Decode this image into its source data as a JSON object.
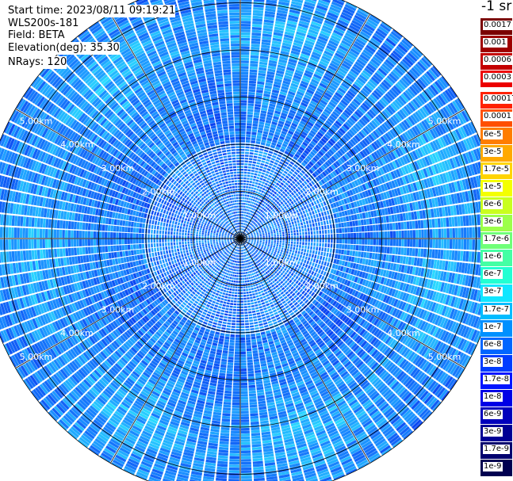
{
  "info": {
    "start_time": "Start time: 2023/08/11 09:19:21",
    "instrument": "WLS200s-181",
    "field": "Field: BETA",
    "elevation": "Elevation(deg): 35.30",
    "nrays": "NRays: 120"
  },
  "colorbar": {
    "unit_title": "-1 sr",
    "top_levels": [
      {
        "label": "0.0017",
        "color": "#7a0000"
      },
      {
        "label": "0.001",
        "color": "#9e0000"
      },
      {
        "label": "0.0006",
        "color": "#c40000"
      },
      {
        "label": "0.0003",
        "color": "#ec0000"
      }
    ],
    "main_levels": [
      {
        "label": "0.00017",
        "color": "#ff2200"
      },
      {
        "label": "0.0001",
        "color": "#ff4f00"
      },
      {
        "label": "6e-5",
        "color": "#ff7d00"
      },
      {
        "label": "3e-5",
        "color": "#ffa900"
      },
      {
        "label": "1.7e-5",
        "color": "#ffd400"
      },
      {
        "label": "1e-5",
        "color": "#f4ff00"
      },
      {
        "label": "6e-6",
        "color": "#c9ff1e"
      },
      {
        "label": "3e-6",
        "color": "#9cff4a"
      },
      {
        "label": "1.7e-6",
        "color": "#6eff78"
      },
      {
        "label": "1e-6",
        "color": "#44ffa4"
      },
      {
        "label": "6e-7",
        "color": "#22ffd2"
      },
      {
        "label": "3e-7",
        "color": "#10e6ff"
      },
      {
        "label": "1.7e-7",
        "color": "#00bcff"
      },
      {
        "label": "1e-7",
        "color": "#0090ff"
      },
      {
        "label": "6e-8",
        "color": "#0066ff"
      },
      {
        "label": "3e-8",
        "color": "#003cff"
      },
      {
        "label": "1.7e-8",
        "color": "#0014ff"
      },
      {
        "label": "1e-8",
        "color": "#0000e6"
      },
      {
        "label": "6e-9",
        "color": "#0000bc"
      },
      {
        "label": "3e-9",
        "color": "#000094"
      },
      {
        "label": "1.7e-9",
        "color": "#00006e"
      },
      {
        "label": "1e-9",
        "color": "#000050"
      }
    ]
  },
  "chart_data": {
    "type": "heatmap",
    "projection": "polar (PPI scan)",
    "field": "BETA",
    "elevation_deg": 35.3,
    "n_rays": 120,
    "range_km_max": 5.5,
    "range_rings_km": [
      1.0,
      2.0,
      3.0,
      4.0,
      5.0
    ],
    "range_ring_labels": [
      "1.00km",
      "2.00km",
      "3.00km",
      "4.00km",
      "5.00km"
    ],
    "dominant_value_range": [
      "1.7e-8",
      "3e-7"
    ],
    "grid": true,
    "colors": {
      "low": "#0a3cf0",
      "mid": "#1a8cff",
      "high": "#2ee6ff"
    }
  }
}
